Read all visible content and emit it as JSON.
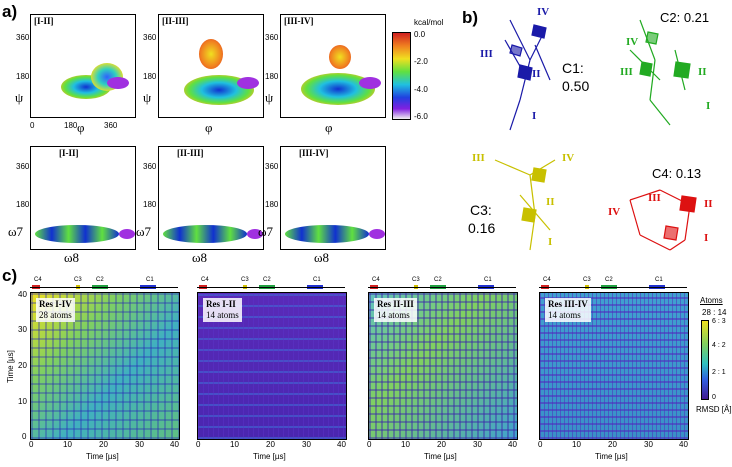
{
  "panel_a": {
    "letter": "a)",
    "top_row": [
      {
        "label": "[I-II]",
        "xsym": "φ",
        "ysym": "ψ"
      },
      {
        "label": "[II-III]",
        "xsym": "φ",
        "ysym": "ψ"
      },
      {
        "label": "[III-IV]",
        "xsym": "φ",
        "ysym": "ψ"
      }
    ],
    "bottom_row": [
      {
        "label": "[I-II]",
        "xsym": "ω8",
        "ysym": "ω7"
      },
      {
        "label": "[II-III]",
        "xsym": "ω8",
        "ysym": "ω7"
      },
      {
        "label": "[III-IV]",
        "xsym": "ω8",
        "ysym": "ω7"
      }
    ],
    "ticks": {
      "y": [
        "360",
        "180",
        "0"
      ],
      "x": [
        "0",
        "180",
        "360"
      ]
    },
    "colorbar": {
      "unit": "kcal/mol",
      "ticks": [
        "0.0",
        "-2.0",
        "-4.0",
        "-6.0"
      ]
    }
  },
  "panel_b": {
    "letter": "b)",
    "clusters": [
      {
        "name": "C1:",
        "value": "0.50",
        "color": "#1a1aa8",
        "residues": [
          "IV",
          "III",
          "II",
          "I"
        ]
      },
      {
        "name": "C2: 0.21",
        "color": "#22aa22",
        "residues": [
          "IV",
          "III",
          "II",
          "I"
        ]
      },
      {
        "name": "C3:",
        "value": "0.16",
        "color": "#c8c000",
        "residues": [
          "III",
          "IV",
          "II",
          "I"
        ]
      },
      {
        "name": "C4: 0.13",
        "color": "#dd1111",
        "residues": [
          "III",
          "IV",
          "II",
          "I"
        ]
      }
    ]
  },
  "panel_c": {
    "letter": "c)",
    "maps": [
      {
        "title": "Res I-IV",
        "atoms": "28 atoms"
      },
      {
        "title": "Res I-II",
        "atoms": "14 atoms"
      },
      {
        "title": "Res II-III",
        "atoms": "14 atoms"
      },
      {
        "title": "Res III-IV",
        "atoms": "14 atoms"
      }
    ],
    "cluster_marks": [
      "C4",
      "C3",
      "C2",
      "C1"
    ],
    "xlabel": "Time [µs]",
    "ylabel": "Time [µs]",
    "yticks": [
      "40",
      "30",
      "20",
      "10",
      "0"
    ],
    "xticks": [
      "0",
      "10",
      "20",
      "30",
      "40"
    ],
    "colorbar": {
      "title": "Atoms",
      "ratio": "28 : 14",
      "ticks": [
        "6 : 3",
        "4 : 2",
        "2 : 1",
        "0"
      ],
      "unit": "RMSD [Å]"
    }
  }
}
